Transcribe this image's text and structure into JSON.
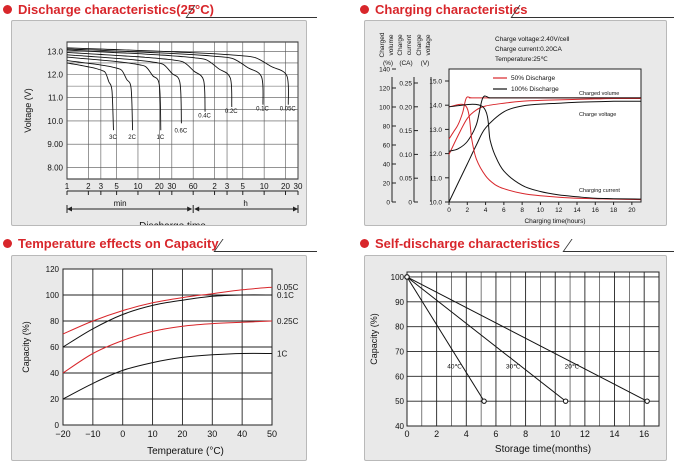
{
  "panels": {
    "discharge": {
      "title": "Discharge characteristics(25°C)"
    },
    "charging": {
      "title": "Charging characteristics"
    },
    "temperature": {
      "title": "Temperature effects on Capacity"
    },
    "selfdischarge": {
      "title": "Self-discharge characteristics"
    }
  },
  "colors": {
    "accent": "#d8262b",
    "panel_bg": "#e9e9e9",
    "curve_red": "#d8262b",
    "curve_black": "#111111"
  },
  "chart_data": [
    {
      "id": "discharge",
      "type": "line",
      "ylabel": "Voltage (V)",
      "xlabel": "Discharge time",
      "ylim": [
        7.5,
        13.4
      ],
      "yticks": [
        "13.0",
        "12.0",
        "11.0",
        "10.0",
        "9.00",
        "8.00"
      ],
      "ytick_values": [
        13.0,
        12.0,
        11.0,
        10.0,
        9.0,
        8.0
      ],
      "extra_ytick_values": [
        12.5,
        11.5,
        10.5
      ],
      "xticks": [
        "1",
        "2",
        "3",
        "5",
        "10",
        "20",
        "30",
        "60",
        "2",
        "3",
        "5",
        "10",
        "20",
        "30"
      ],
      "xtick_minutes": [
        1,
        2,
        3,
        5,
        10,
        20,
        30,
        60,
        120,
        180,
        300,
        600,
        1200,
        1800
      ],
      "unit_min": "min",
      "unit_h": "h",
      "series": [
        {
          "name": "3C",
          "end_min": 4.3,
          "start_v": 12.5,
          "cutoff_v": 9.6
        },
        {
          "name": "2C",
          "end_min": 8.0,
          "start_v": 12.6,
          "cutoff_v": 9.6
        },
        {
          "name": "1C",
          "end_min": 20.0,
          "start_v": 12.75,
          "cutoff_v": 9.6
        },
        {
          "name": "0.6C",
          "end_min": 39.0,
          "start_v": 12.85,
          "cutoff_v": 9.9
        },
        {
          "name": "0.4C",
          "end_min": 84.0,
          "start_v": 12.95,
          "cutoff_v": 10.4
        },
        {
          "name": "0.2C",
          "end_min": 200.0,
          "start_v": 13.05,
          "cutoff_v": 10.6
        },
        {
          "name": "0.1C",
          "end_min": 550.0,
          "start_v": 13.1,
          "cutoff_v": 10.7
        },
        {
          "name": "0.05C",
          "end_min": 1250.0,
          "start_v": 13.15,
          "cutoff_v": 10.7
        }
      ]
    },
    {
      "id": "charging",
      "type": "line",
      "conditions": [
        "Charge voltage:2.40V/cell",
        "Charge current:0.20CA",
        "Temperature:25℃"
      ],
      "axis_headers": [
        "Charged volume",
        "Charge current",
        "Charge voltage"
      ],
      "axis_units": [
        "(%)",
        "(CA)",
        "(V)"
      ],
      "xlabel": "Charging time(hours)",
      "xticks": [
        "0",
        "2",
        "4",
        "6",
        "8",
        "10",
        "12",
        "14",
        "16",
        "18",
        "20"
      ],
      "xlim": [
        0,
        21
      ],
      "charged_volume_ticks": [
        "140",
        "120",
        "100",
        "80",
        "60",
        "40",
        "20",
        "0"
      ],
      "charged_volume_range": [
        0,
        140
      ],
      "current_ticks": [
        "0.25",
        "0.20",
        "0.15",
        "0.10",
        "0.05",
        "0"
      ],
      "current_range": [
        0,
        0.25
      ],
      "voltage_ticks": [
        "15.0",
        "14.0",
        "13.0",
        "12.0",
        "11.0",
        "10.0"
      ],
      "voltage_range": [
        10.0,
        15.0
      ],
      "legend": [
        "50% Discharge",
        "100% Discharge"
      ],
      "curve_labels": [
        "Charged volume",
        "Charge voltage",
        "Charging current"
      ],
      "series": [
        {
          "name": "Charged volume (50% Discharge)",
          "axis": "volume",
          "color": "red",
          "x": [
            0,
            1,
            2,
            3,
            4,
            6,
            8,
            10,
            12,
            14,
            16,
            18,
            20,
            21
          ],
          "y": [
            50,
            70,
            88,
            97,
            101,
            104,
            106,
            107,
            107.5,
            108,
            108.5,
            109,
            109,
            109
          ]
        },
        {
          "name": "Charged volume (100% Discharge)",
          "axis": "volume",
          "color": "black",
          "x": [
            0,
            1,
            2,
            3,
            4,
            6,
            8,
            10,
            12,
            14,
            16,
            18,
            20,
            21
          ],
          "y": [
            0,
            20,
            40,
            60,
            78,
            95,
            101,
            103,
            104,
            105,
            105.5,
            106,
            106,
            106
          ]
        },
        {
          "name": "Charge voltage (50% Discharge)",
          "axis": "voltage",
          "color": "red",
          "x": [
            0,
            0.5,
            1,
            1.5,
            1.9,
            2.5,
            4,
            21
          ],
          "y": [
            12.6,
            12.9,
            13.2,
            13.7,
            14.3,
            14.3,
            14.3,
            14.3
          ]
        },
        {
          "name": "Charge voltage (100% Discharge)",
          "axis": "voltage",
          "color": "black",
          "x": [
            0,
            1,
            2,
            3,
            3.7,
            4.5,
            6,
            21
          ],
          "y": [
            12.1,
            12.2,
            12.5,
            13.2,
            14.3,
            14.3,
            14.3,
            14.3
          ]
        },
        {
          "name": "Charging current (50% Discharge)",
          "axis": "current",
          "color": "red",
          "x": [
            0,
            1.9,
            2.5,
            3,
            4,
            5,
            6,
            8,
            10,
            12,
            14,
            16,
            18,
            21
          ],
          "y": [
            0.2,
            0.2,
            0.13,
            0.09,
            0.055,
            0.037,
            0.028,
            0.018,
            0.013,
            0.01,
            0.008,
            0.007,
            0.006,
            0.005
          ]
        },
        {
          "name": "Charging current (100% Discharge)",
          "axis": "current",
          "color": "black",
          "x": [
            0,
            3.7,
            4.5,
            5,
            6,
            8,
            10,
            12,
            14,
            16,
            18,
            21
          ],
          "y": [
            0.2,
            0.2,
            0.13,
            0.1,
            0.065,
            0.035,
            0.022,
            0.015,
            0.011,
            0.008,
            0.007,
            0.006
          ]
        }
      ]
    },
    {
      "id": "temperature",
      "type": "line",
      "ylabel": "Capacity (%)",
      "xlabel": "Temperature (°C)",
      "xlim": [
        -20,
        50
      ],
      "ylim": [
        0,
        120
      ],
      "xticks": [
        "−20",
        "−10",
        "0",
        "10",
        "20",
        "30",
        "40",
        "50"
      ],
      "xtick_values": [
        -20,
        -10,
        0,
        10,
        20,
        30,
        40,
        50
      ],
      "yticks": [
        "0",
        "20",
        "40",
        "60",
        "80",
        "100",
        "120"
      ],
      "ytick_values": [
        0,
        20,
        40,
        60,
        80,
        100,
        120
      ],
      "series": [
        {
          "name": "0.05C",
          "color": "red",
          "x": [
            -20,
            -10,
            0,
            10,
            20,
            30,
            40,
            50
          ],
          "y": [
            70,
            80,
            88,
            94,
            98,
            101,
            104,
            106
          ]
        },
        {
          "name": "0.1C",
          "color": "black",
          "x": [
            -20,
            -10,
            0,
            10,
            20,
            30,
            40,
            50
          ],
          "y": [
            60,
            74,
            85,
            92,
            96,
            99,
            100,
            100
          ]
        },
        {
          "name": "0.25C",
          "color": "red",
          "x": [
            -20,
            -10,
            0,
            10,
            20,
            30,
            40,
            50
          ],
          "y": [
            40,
            55,
            65,
            72,
            76,
            78,
            79,
            80
          ]
        },
        {
          "name": "1C",
          "color": "black",
          "x": [
            -20,
            -10,
            0,
            10,
            20,
            30,
            40,
            50
          ],
          "y": [
            20,
            32,
            42,
            48,
            52,
            54,
            55,
            55
          ]
        }
      ]
    },
    {
      "id": "selfdischarge",
      "type": "line",
      "ylabel": "Capacity (%)",
      "xlabel": "Storage time(months)",
      "xlim": [
        0,
        17
      ],
      "ylim": [
        40,
        102
      ],
      "xticks": [
        "0",
        "2",
        "4",
        "6",
        "8",
        "10",
        "12",
        "14",
        "16"
      ],
      "xtick_values": [
        0,
        2,
        4,
        6,
        8,
        10,
        12,
        14,
        16
      ],
      "yticks": [
        "40",
        "50",
        "60",
        "70",
        "80",
        "90",
        "100"
      ],
      "ytick_values": [
        40,
        50,
        60,
        70,
        80,
        90,
        100
      ],
      "series": [
        {
          "name": "40℃",
          "x": [
            0,
            5.2
          ],
          "y": [
            100,
            50
          ]
        },
        {
          "name": "30℃",
          "x": [
            0,
            10.7
          ],
          "y": [
            100,
            50
          ]
        },
        {
          "name": "20℃",
          "x": [
            0,
            16.2
          ],
          "y": [
            100,
            50
          ]
        }
      ]
    }
  ]
}
